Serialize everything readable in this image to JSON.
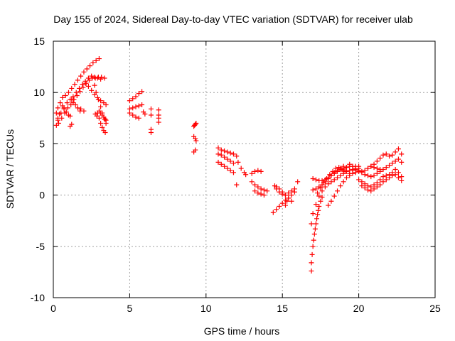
{
  "chart_data": {
    "type": "scatter",
    "title": "Day 155 of 2024, Sidereal Day-to-day VTEC variation (SDTVAR) for receiver ulab",
    "xlabel": "GPS time / hours",
    "ylabel": "SDTVAR / TECUs",
    "xlim": [
      0,
      25
    ],
    "ylim": [
      -10,
      15
    ],
    "x_ticks": [
      0,
      5,
      10,
      15,
      20,
      25
    ],
    "y_ticks": [
      -10,
      -5,
      0,
      5,
      10,
      15
    ],
    "x_tick_labels": [
      "0",
      "5",
      "10",
      "15",
      "20",
      "25"
    ],
    "y_tick_labels": [
      "-10",
      "-5",
      "0",
      "5",
      "10",
      "15"
    ],
    "grid": true,
    "marker": "+",
    "color": "#ff0000",
    "series": [
      {
        "name": "t0",
        "x": [
          0.2,
          0.3,
          0.45,
          0.6,
          0.8,
          1.0,
          1.2,
          1.4,
          1.6,
          1.8,
          2.0,
          2.2,
          2.4,
          2.6,
          2.8,
          3.0
        ],
        "y": [
          8.0,
          8.5,
          9.0,
          9.5,
          9.7,
          10.0,
          10.4,
          10.8,
          11.2,
          11.6,
          12.0,
          12.3,
          12.6,
          12.9,
          13.1,
          13.3
        ]
      },
      {
        "name": "t1",
        "x": [
          0.3,
          0.5,
          0.7,
          0.9,
          1.1,
          1.3,
          1.5,
          1.7,
          1.9,
          2.1,
          2.3,
          2.5,
          2.7,
          2.9,
          3.1
        ],
        "y": [
          7.5,
          8.0,
          8.5,
          9.0,
          9.3,
          9.6,
          10.0,
          10.4,
          10.8,
          11.1,
          11.4,
          11.6,
          11.5,
          11.4,
          11.3
        ]
      },
      {
        "name": "t2",
        "x": [
          0.35,
          0.55,
          0.75,
          0.95,
          1.15,
          1.35,
          1.55,
          1.75,
          1.95,
          2.15,
          2.35,
          2.55,
          2.75,
          2.95,
          3.15,
          3.35
        ],
        "y": [
          7.0,
          7.5,
          8.0,
          8.5,
          8.8,
          9.3,
          9.7,
          10.1,
          10.5,
          10.9,
          11.2,
          11.4,
          11.4,
          11.5,
          11.5,
          11.4
        ]
      },
      {
        "name": "t3",
        "x": [
          0.2,
          0.3,
          0.4
        ],
        "y": [
          6.8,
          7.3,
          7.9
        ]
      },
      {
        "name": "t4",
        "x": [
          1.2,
          1.3,
          1.45,
          1.6,
          1.75
        ],
        "y": [
          9.3,
          9.0,
          8.8,
          8.5,
          8.2
        ]
      },
      {
        "name": "t5",
        "x": [
          0.6,
          0.7,
          0.85,
          1.0,
          1.1
        ],
        "y": [
          8.7,
          8.4,
          8.1,
          7.8,
          7.7
        ]
      },
      {
        "name": "t6",
        "x": [
          1.1,
          1.2
        ],
        "y": [
          6.7,
          6.9
        ]
      },
      {
        "name": "t7",
        "x": [
          1.8,
          2.0
        ],
        "y": [
          8.4,
          8.2
        ]
      },
      {
        "name": "t8",
        "x": [
          2.1,
          2.3,
          2.5,
          2.7,
          2.9,
          3.1,
          3.3,
          3.45
        ],
        "y": [
          10.9,
          10.6,
          10.2,
          9.8,
          9.5,
          9.2,
          9.0,
          8.8
        ]
      },
      {
        "name": "t9",
        "x": [
          2.7,
          2.8,
          2.95,
          3.1,
          3.2,
          3.35,
          3.45
        ],
        "y": [
          10.7,
          10.0,
          9.3,
          8.6,
          8.0,
          7.4,
          7.0
        ]
      },
      {
        "name": "t10",
        "x": [
          2.9,
          3.0,
          3.1,
          3.2,
          3.3,
          3.4
        ],
        "y": [
          8.0,
          7.5,
          7.0,
          6.6,
          6.3,
          6.1
        ]
      },
      {
        "name": "t11",
        "x": [
          2.75,
          2.85
        ],
        "y": [
          7.9,
          7.7
        ]
      },
      {
        "name": "t12",
        "x": [
          3.0,
          3.1,
          3.2,
          3.3,
          3.4,
          3.45
        ],
        "y": [
          8.2,
          8.0,
          7.8,
          7.6,
          7.4,
          7.3
        ]
      },
      {
        "name": "t13",
        "x": [
          5.0,
          5.2,
          5.4,
          5.6,
          5.8
        ],
        "y": [
          9.2,
          9.4,
          9.6,
          9.9,
          10.1
        ]
      },
      {
        "name": "t14",
        "x": [
          5.0,
          5.2,
          5.4,
          5.6,
          5.8
        ],
        "y": [
          8.4,
          8.5,
          8.6,
          8.7,
          8.8
        ]
      },
      {
        "name": "t15",
        "x": [
          5.0,
          5.2,
          5.4,
          5.6
        ],
        "y": [
          8.0,
          7.8,
          7.6,
          7.5
        ]
      },
      {
        "name": "t16",
        "x": [
          5.9,
          6.0
        ],
        "y": [
          8.1,
          7.9
        ]
      },
      {
        "name": "t17",
        "x": [
          6.4,
          6.4,
          6.4,
          6.4
        ],
        "y": [
          8.4,
          7.8,
          6.4,
          6.1
        ]
      },
      {
        "name": "t18",
        "x": [
          6.9,
          6.9,
          6.9,
          6.9
        ],
        "y": [
          8.3,
          7.8,
          7.5,
          7.1
        ]
      },
      {
        "name": "t19",
        "x": [
          9.2,
          9.25,
          9.3,
          9.35
        ],
        "y": [
          6.7,
          6.8,
          6.9,
          7.0
        ]
      },
      {
        "name": "t20",
        "x": [
          9.2,
          9.3,
          9.35
        ],
        "y": [
          5.7,
          5.5,
          5.3
        ]
      },
      {
        "name": "t21",
        "x": [
          9.2,
          9.3
        ],
        "y": [
          4.2,
          4.4
        ]
      },
      {
        "name": "t22",
        "x": [
          10.8,
          11.0,
          11.2,
          11.4,
          11.6,
          11.8
        ],
        "y": [
          4.6,
          4.4,
          4.3,
          4.2,
          4.1,
          4.0
        ]
      },
      {
        "name": "t23",
        "x": [
          10.8,
          11.0,
          11.2,
          11.4,
          11.6,
          11.8
        ],
        "y": [
          4.0,
          3.9,
          3.7,
          3.5,
          3.3,
          3.1
        ]
      },
      {
        "name": "t24",
        "x": [
          10.8,
          11.0,
          11.2,
          11.4,
          11.6,
          11.8
        ],
        "y": [
          3.2,
          3.0,
          2.8,
          2.6,
          2.4,
          2.2
        ]
      },
      {
        "name": "t25",
        "x": [
          12.0,
          12.1,
          12.3,
          12.5,
          12.6
        ],
        "y": [
          3.8,
          3.2,
          2.6,
          2.2,
          2.0
        ]
      },
      {
        "name": "t26",
        "x": [
          12.0
        ],
        "y": [
          1.0
        ]
      },
      {
        "name": "t27",
        "x": [
          13.0,
          13.2,
          13.4,
          13.6
        ],
        "y": [
          2.1,
          2.3,
          2.4,
          2.3
        ]
      },
      {
        "name": "t28",
        "x": [
          13.0,
          13.2,
          13.4,
          13.6,
          13.8,
          14.0
        ],
        "y": [
          1.3,
          1.0,
          0.8,
          0.6,
          0.5,
          0.4
        ]
      },
      {
        "name": "t29",
        "x": [
          13.2,
          13.4,
          13.6,
          13.8
        ],
        "y": [
          0.4,
          0.2,
          0.1,
          0.0
        ]
      },
      {
        "name": "t30",
        "x": [
          14.5,
          14.6,
          14.8,
          15.0,
          15.2,
          15.4,
          15.6,
          15.8
        ],
        "y": [
          0.9,
          0.6,
          0.3,
          0.1,
          0.0,
          0.2,
          0.4,
          0.6
        ]
      },
      {
        "name": "t31",
        "x": [
          14.4,
          14.6,
          14.8,
          15.0,
          15.2,
          15.4,
          15.6,
          15.8
        ],
        "y": [
          -1.7,
          -1.4,
          -1.1,
          -0.8,
          -0.5,
          -0.3,
          0.0,
          0.3
        ]
      },
      {
        "name": "t32",
        "x": [
          14.6,
          14.8,
          15.0,
          15.2,
          15.4,
          15.6
        ],
        "y": [
          0.8,
          0.6,
          0.3,
          0.0,
          -0.3,
          -0.6
        ]
      },
      {
        "name": "t33",
        "x": [
          15.2,
          15.3
        ],
        "y": [
          -1.0,
          -0.6
        ]
      },
      {
        "name": "t34",
        "x": [
          16.0
        ],
        "y": [
          1.3
        ]
      },
      {
        "name": "t35",
        "x": [
          16.9,
          16.9,
          16.95,
          17.0,
          17.05,
          17.1,
          17.15,
          17.2,
          17.25,
          17.3,
          17.35,
          17.4,
          17.5,
          17.6
        ],
        "y": [
          -7.4,
          -6.6,
          -5.8,
          -5.0,
          -4.4,
          -3.8,
          -3.3,
          -2.8,
          -2.3,
          -1.9,
          -1.5,
          -1.1,
          -0.6,
          -0.2
        ]
      },
      {
        "name": "t36",
        "x": [
          16.9,
          17.0,
          17.2,
          17.4,
          17.6,
          17.8,
          18.0,
          18.2,
          18.4,
          18.6,
          18.8,
          19.0,
          19.2,
          19.4,
          19.6,
          19.8,
          20.0
        ],
        "y": [
          -2.8,
          -1.8,
          -0.9,
          -0.1,
          0.4,
          0.8,
          1.1,
          1.3,
          1.5,
          1.7,
          1.9,
          2.1,
          2.3,
          2.4,
          2.5,
          2.5,
          2.6
        ]
      },
      {
        "name": "t37",
        "x": [
          17.3,
          17.5,
          17.7,
          17.9,
          18.1,
          18.3,
          18.5,
          18.7,
          18.9,
          19.1
        ],
        "y": [
          0.2,
          0.7,
          1.2,
          1.6,
          2.0,
          2.3,
          2.6,
          2.7,
          2.5,
          2.3
        ]
      },
      {
        "name": "t38",
        "x": [
          17.0,
          17.2,
          17.4,
          17.6,
          17.8,
          18.0,
          18.2,
          18.4,
          18.6,
          18.8,
          19.0,
          19.2,
          19.4,
          19.6,
          19.8,
          20.0
        ],
        "y": [
          1.6,
          1.5,
          1.4,
          1.4,
          1.5,
          1.7,
          1.9,
          2.1,
          2.3,
          2.5,
          2.6,
          2.7,
          2.8,
          2.8,
          2.8,
          2.8
        ]
      },
      {
        "name": "t39",
        "x": [
          17.0,
          17.2,
          17.4,
          17.6,
          17.8,
          18.0,
          18.2,
          18.4,
          18.6,
          18.8,
          19.0
        ],
        "y": [
          0.5,
          0.6,
          0.8,
          1.0,
          1.3,
          1.6,
          1.9,
          2.2,
          2.4,
          2.6,
          2.8
        ]
      },
      {
        "name": "t40",
        "x": [
          18.0,
          18.2,
          18.4,
          18.6,
          18.8,
          19.0,
          19.2,
          19.4,
          19.6
        ],
        "y": [
          -1.0,
          -0.6,
          -0.1,
          0.4,
          0.9,
          1.3,
          1.7,
          2.1,
          2.4
        ]
      },
      {
        "name": "t41",
        "x": [
          19.0,
          19.2,
          19.4,
          19.6,
          19.8,
          20.0,
          20.2,
          20.4,
          20.6,
          20.8,
          21.0,
          21.2,
          21.4,
          21.6,
          21.8,
          22.0,
          22.2,
          22.4,
          22.6,
          22.8
        ],
        "y": [
          2.4,
          2.7,
          3.0,
          2.8,
          2.6,
          2.4,
          2.3,
          2.4,
          2.6,
          2.8,
          3.0,
          3.3,
          3.6,
          3.9,
          4.0,
          3.8,
          3.9,
          4.2,
          4.5,
          4.0
        ]
      },
      {
        "name": "t42",
        "x": [
          19.4,
          19.6,
          19.8,
          20.0,
          20.2,
          20.4,
          20.6,
          20.8,
          21.0,
          21.2,
          21.4,
          21.6,
          21.8,
          22.0,
          22.2,
          22.4,
          22.6,
          22.8
        ],
        "y": [
          1.9,
          2.1,
          2.2,
          2.3,
          2.2,
          2.0,
          1.9,
          1.8,
          1.9,
          2.1,
          2.3,
          2.5,
          2.7,
          2.9,
          3.1,
          3.3,
          3.5,
          3.2
        ]
      },
      {
        "name": "t43",
        "x": [
          20.0,
          20.2,
          20.4,
          20.6,
          20.8,
          21.0,
          21.2,
          21.4,
          21.6,
          21.8,
          22.0,
          22.2,
          22.4,
          22.6,
          22.8
        ],
        "y": [
          1.5,
          1.3,
          1.1,
          0.9,
          0.8,
          1.0,
          1.2,
          1.5,
          1.8,
          1.9,
          2.0,
          2.2,
          2.5,
          2.2,
          1.8
        ]
      },
      {
        "name": "t44",
        "x": [
          20.2,
          20.4,
          20.6,
          20.8,
          21.0,
          21.2,
          21.4,
          21.6,
          21.8,
          22.0,
          22.2,
          22.4,
          22.6,
          22.8
        ],
        "y": [
          0.9,
          0.7,
          0.5,
          0.4,
          0.6,
          0.8,
          1.0,
          1.3,
          1.5,
          1.7,
          1.9,
          2.0,
          1.7,
          1.4
        ]
      },
      {
        "name": "t45",
        "x": [
          20.6,
          20.8,
          21.0,
          21.2,
          21.4
        ],
        "y": [
          2.6,
          2.8,
          2.7,
          2.6,
          2.5
        ]
      }
    ]
  }
}
